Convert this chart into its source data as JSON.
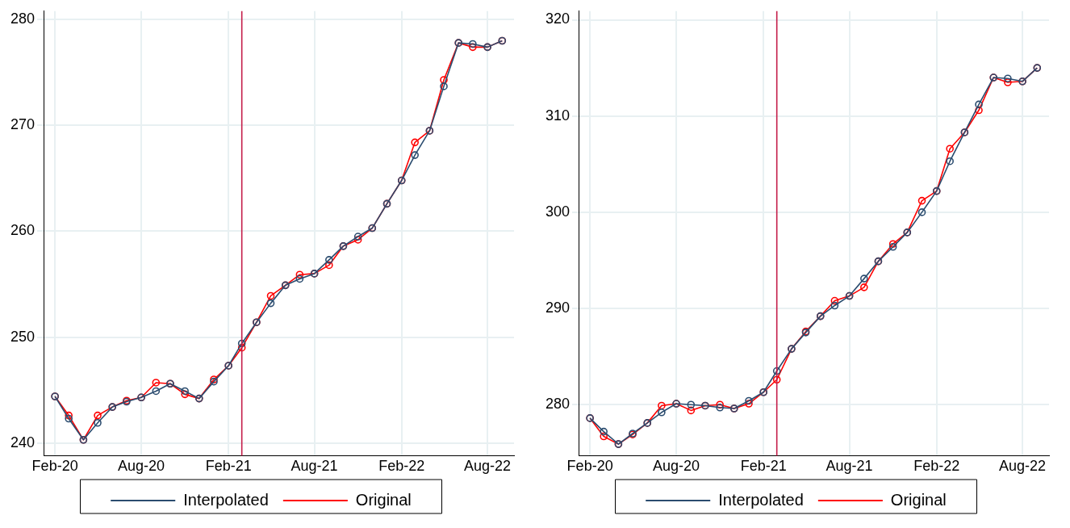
{
  "chart_data": [
    {
      "type": "line",
      "x": [
        "2020-02",
        "2020-03",
        "2020-04",
        "2020-05",
        "2020-06",
        "2020-07",
        "2020-08",
        "2020-09",
        "2020-10",
        "2020-11",
        "2020-12",
        "2021-01",
        "2021-02",
        "2021-03",
        "2021-04",
        "2021-05",
        "2021-06",
        "2021-07",
        "2021-08",
        "2021-09",
        "2021-10",
        "2021-11",
        "2021-12",
        "2022-01",
        "2022-02",
        "2022-03",
        "2022-04",
        "2022-05",
        "2022-06",
        "2022-07",
        "2022-08",
        "2022-09"
      ],
      "series": [
        {
          "name": "Interpolated",
          "color": "#2b4c6f",
          "values": [
            244.4,
            242.3,
            240.3,
            241.9,
            243.4,
            243.9,
            244.3,
            244.9,
            245.6,
            244.9,
            244.2,
            245.8,
            247.3,
            249.4,
            251.4,
            253.2,
            254.9,
            255.5,
            256.0,
            257.3,
            258.6,
            259.5,
            260.3,
            262.6,
            264.8,
            267.2,
            269.5,
            273.7,
            277.8,
            277.7,
            277.4,
            278.0
          ]
        },
        {
          "name": "Original",
          "color": "#ff0000",
          "values": [
            244.4,
            242.6,
            240.3,
            242.6,
            243.4,
            244.0,
            244.3,
            245.7,
            245.6,
            244.6,
            244.2,
            246.0,
            247.3,
            249.0,
            251.4,
            253.9,
            254.9,
            255.9,
            256.0,
            256.8,
            258.6,
            259.2,
            260.3,
            262.6,
            264.8,
            268.4,
            269.5,
            274.3,
            277.8,
            277.4,
            277.4,
            278.0
          ]
        }
      ],
      "xlim": [
        "2020-01-08",
        "2022-09-26"
      ],
      "xticks": [
        {
          "value": "2020-02",
          "label": "Feb-20"
        },
        {
          "value": "2020-08",
          "label": "Aug-20"
        },
        {
          "value": "2021-02",
          "label": "Feb-21"
        },
        {
          "value": "2021-08",
          "label": "Aug-21"
        },
        {
          "value": "2022-02",
          "label": "Feb-22"
        },
        {
          "value": "2022-08",
          "label": "Aug-22"
        }
      ],
      "ylim": [
        238.8,
        280.8
      ],
      "yticks": [
        240,
        250,
        260,
        270,
        280
      ],
      "ref_lines": [
        {
          "axis": "x",
          "value": "2021-03",
          "color": "#c41e4a"
        }
      ],
      "grid": true,
      "legend": "bottom",
      "marker": "circle"
    },
    {
      "type": "line",
      "x": [
        "2020-02",
        "2020-03",
        "2020-04",
        "2020-05",
        "2020-06",
        "2020-07",
        "2020-08",
        "2020-09",
        "2020-10",
        "2020-11",
        "2020-12",
        "2021-01",
        "2021-02",
        "2021-03",
        "2021-04",
        "2021-05",
        "2021-06",
        "2021-07",
        "2021-08",
        "2021-09",
        "2021-10",
        "2021-11",
        "2021-12",
        "2022-01",
        "2022-02",
        "2022-03",
        "2022-04",
        "2022-05",
        "2022-06",
        "2022-07",
        "2022-08",
        "2022-09"
      ],
      "series": [
        {
          "name": "Interpolated",
          "color": "#2b4c6f",
          "values": [
            278.6,
            277.2,
            275.9,
            277.0,
            278.1,
            279.2,
            280.1,
            280.0,
            279.9,
            279.7,
            279.6,
            280.4,
            281.3,
            283.5,
            285.8,
            287.5,
            289.2,
            290.3,
            291.3,
            293.1,
            294.9,
            296.4,
            297.9,
            300.0,
            302.2,
            305.3,
            308.3,
            311.2,
            314.0,
            313.9,
            313.6,
            315.0
          ]
        },
        {
          "name": "Original",
          "color": "#ff0000",
          "values": [
            278.6,
            276.7,
            275.9,
            276.9,
            278.1,
            279.9,
            280.1,
            279.4,
            279.9,
            280.0,
            279.6,
            280.1,
            281.3,
            282.6,
            285.8,
            287.6,
            289.2,
            290.8,
            291.3,
            292.2,
            294.9,
            296.7,
            297.9,
            301.2,
            302.2,
            306.6,
            308.3,
            310.6,
            314.0,
            313.5,
            313.6,
            315.0
          ]
        }
      ],
      "xlim": [
        "2020-01-08",
        "2022-09-26"
      ],
      "xticks": [
        {
          "value": "2020-02",
          "label": "Feb-20"
        },
        {
          "value": "2020-08",
          "label": "Aug-20"
        },
        {
          "value": "2021-02",
          "label": "Feb-21"
        },
        {
          "value": "2021-08",
          "label": "Aug-21"
        },
        {
          "value": "2022-02",
          "label": "Feb-22"
        },
        {
          "value": "2022-08",
          "label": "Aug-22"
        }
      ],
      "ylim": [
        274.7,
        320.9
      ],
      "yticks": [
        280,
        290,
        300,
        310,
        320
      ],
      "ref_lines": [
        {
          "axis": "x",
          "value": "2021-03",
          "color": "#c41e4a"
        }
      ],
      "grid": true,
      "legend": "bottom",
      "marker": "circle"
    }
  ]
}
